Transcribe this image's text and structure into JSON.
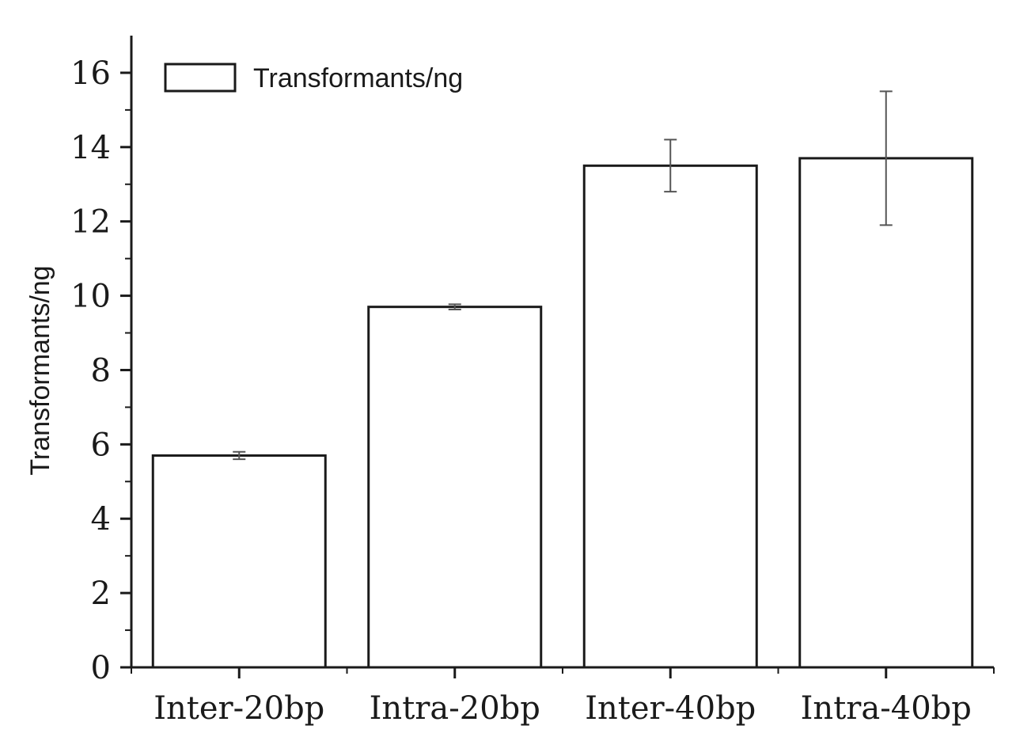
{
  "chart_data": {
    "type": "bar",
    "title": "",
    "xlabel": "",
    "ylabel": "Transformants/ng",
    "categories": [
      "Inter-20bp",
      "Intra-20bp",
      "Inter-40bp",
      "Intra-40bp"
    ],
    "series": [
      {
        "name": "Transformants/ng",
        "values": [
          5.7,
          9.7,
          13.5,
          13.7
        ],
        "error": [
          0.1,
          0.07,
          0.7,
          1.8
        ]
      }
    ],
    "ylim": [
      0,
      17
    ],
    "yticks": [
      0,
      2,
      4,
      6,
      8,
      10,
      12,
      14,
      16
    ],
    "ytick_labels": [
      "0",
      "2",
      "4",
      "6",
      "8",
      "10",
      "12",
      "14",
      "16"
    ],
    "grid": false,
    "legend_position": "top-left",
    "colors": {
      "bar_fill": "#ffffff",
      "bar_stroke": "#1a1a1a",
      "axis": "#1a1a1a",
      "error_bar": "#555555"
    }
  }
}
